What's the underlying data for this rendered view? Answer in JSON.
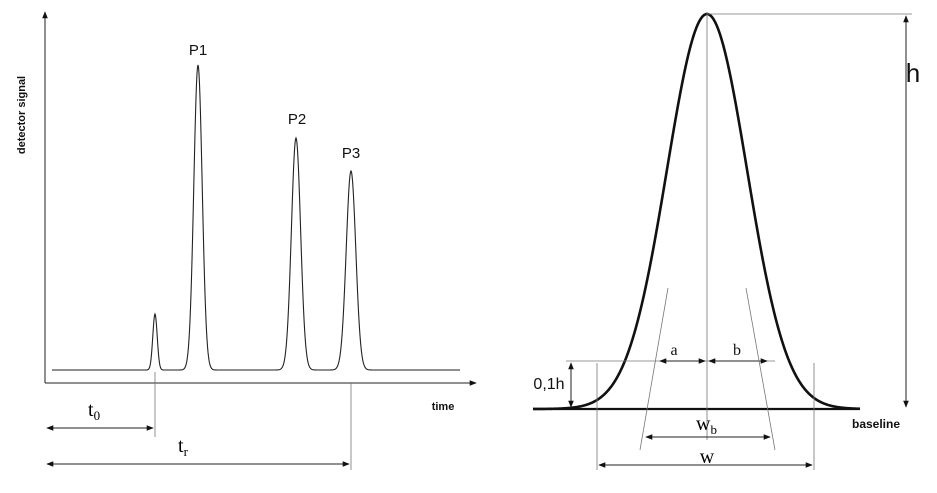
{
  "chromatogram": {
    "y_axis_label": "detector signal",
    "x_axis_label": "time",
    "peaks": [
      {
        "label": ""
      },
      {
        "label": "P1"
      },
      {
        "label": "P2"
      },
      {
        "label": "P3"
      }
    ],
    "dimensions": {
      "t0_main": "t",
      "t0_sub": "0",
      "tr_main": "t",
      "tr_sub": "r"
    }
  },
  "peak_detail": {
    "height_label": "h",
    "tenth_height_label": "0,1h",
    "a_label": "a",
    "b_label": "b",
    "wb_main": "w",
    "wb_sub": "b",
    "w_label": "w",
    "baseline_label": "baseline"
  },
  "colors": {
    "line": "#111111",
    "guide": "#777777"
  }
}
